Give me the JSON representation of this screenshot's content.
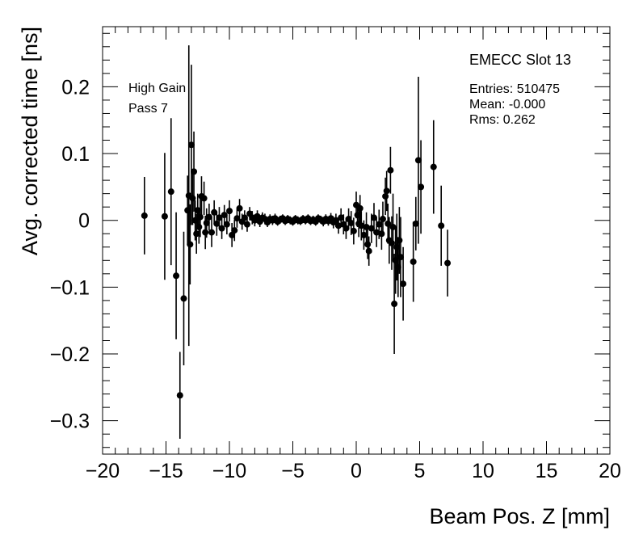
{
  "chart_data": {
    "type": "scatter",
    "title": "",
    "xlabel": "Beam Pos. Z [mm]",
    "ylabel": "Avg. corrected time [ns]",
    "xlim": [
      -20,
      20
    ],
    "ylim": [
      -0.35,
      0.29
    ],
    "x_ticks": [
      -20,
      -15,
      -10,
      -5,
      0,
      5,
      10,
      15,
      20
    ],
    "y_ticks": [
      -0.3,
      -0.2,
      -0.1,
      0,
      0.1,
      0.2
    ],
    "x_tick_labels": [
      "−20",
      "−15",
      "−10",
      "−5",
      "0",
      "5",
      "10",
      "15",
      "20"
    ],
    "y_tick_labels": [
      "−0.3",
      "−0.2",
      "−0.1",
      "0",
      "0.1",
      "0.2"
    ],
    "grid": false,
    "marker_color": "#000000",
    "annotations": {
      "left_line1": "High Gain",
      "left_line2": "Pass 7"
    },
    "stats_box": {
      "title": "EMECC Slot 13",
      "entries": "Entries: 510475",
      "mean": "Mean: -0.000",
      "rms": "Rms: 0.262"
    },
    "series": [
      {
        "points": [
          {
            "x": -16.7,
            "y": 0.007,
            "err": 0.058
          },
          {
            "x": -15.1,
            "y": 0.006,
            "err": 0.095
          },
          {
            "x": -14.6,
            "y": 0.043,
            "err": 0.11
          },
          {
            "x": -14.2,
            "y": -0.083,
            "err": 0.095
          },
          {
            "x": -13.9,
            "y": -0.262,
            "err": 0.065
          },
          {
            "x": -13.6,
            "y": -0.117,
            "err": 0.1
          },
          {
            "x": -13.3,
            "y": 0.015,
            "err": 0.052
          },
          {
            "x": -13.2,
            "y": 0.037,
            "err": 0.225
          },
          {
            "x": -13.1,
            "y": -0.036,
            "err": 0.06
          },
          {
            "x": -13.0,
            "y": 0.113,
            "err": 0.12
          },
          {
            "x": -12.9,
            "y": 0.033,
            "err": 0.04
          },
          {
            "x": -12.8,
            "y": 0.073,
            "err": 0.06
          },
          {
            "x": -12.7,
            "y": 0.0,
            "err": 0.03
          },
          {
            "x": -12.6,
            "y": -0.02,
            "err": 0.03
          },
          {
            "x": -12.5,
            "y": 0.015,
            "err": 0.025
          },
          {
            "x": -12.4,
            "y": -0.01,
            "err": 0.025
          },
          {
            "x": -12.3,
            "y": 0.005,
            "err": 0.03
          },
          {
            "x": -12.2,
            "y": 0.036,
            "err": 0.03
          },
          {
            "x": -12.0,
            "y": 0.033,
            "err": 0.025
          },
          {
            "x": -11.9,
            "y": -0.018,
            "err": 0.025
          },
          {
            "x": -11.8,
            "y": -0.004,
            "err": 0.022
          },
          {
            "x": -11.6,
            "y": 0.005,
            "err": 0.02
          },
          {
            "x": -11.4,
            "y": -0.018,
            "err": 0.022
          },
          {
            "x": -11.2,
            "y": 0.012,
            "err": 0.018
          },
          {
            "x": -11.0,
            "y": -0.005,
            "err": 0.018
          },
          {
            "x": -10.8,
            "y": 0.004,
            "err": 0.016
          },
          {
            "x": -10.6,
            "y": -0.012,
            "err": 0.016
          },
          {
            "x": -10.4,
            "y": 0.008,
            "err": 0.015
          },
          {
            "x": -10.2,
            "y": -0.006,
            "err": 0.015
          },
          {
            "x": -10.0,
            "y": 0.014,
            "err": 0.016
          },
          {
            "x": -9.8,
            "y": -0.022,
            "err": 0.018
          },
          {
            "x": -9.6,
            "y": -0.015,
            "err": 0.016
          },
          {
            "x": -9.4,
            "y": 0.003,
            "err": 0.014
          },
          {
            "x": -9.2,
            "y": 0.018,
            "err": 0.014
          },
          {
            "x": -9.0,
            "y": -0.002,
            "err": 0.012
          },
          {
            "x": -8.8,
            "y": 0.004,
            "err": 0.011
          },
          {
            "x": -8.6,
            "y": -0.006,
            "err": 0.011
          },
          {
            "x": -8.4,
            "y": 0.01,
            "err": 0.01
          },
          {
            "x": -8.2,
            "y": 0.004,
            "err": 0.01
          },
          {
            "x": -8.0,
            "y": 0.0,
            "err": 0.009
          },
          {
            "x": -7.8,
            "y": 0.006,
            "err": 0.009
          },
          {
            "x": -7.6,
            "y": -0.002,
            "err": 0.008
          },
          {
            "x": -7.4,
            "y": 0.004,
            "err": 0.008
          },
          {
            "x": -7.2,
            "y": 0.002,
            "err": 0.008
          },
          {
            "x": -7.0,
            "y": -0.003,
            "err": 0.007
          },
          {
            "x": -6.8,
            "y": 0.002,
            "err": 0.007
          },
          {
            "x": -6.6,
            "y": 0.0,
            "err": 0.007
          },
          {
            "x": -6.4,
            "y": 0.003,
            "err": 0.007
          },
          {
            "x": -6.2,
            "y": -0.002,
            "err": 0.006
          },
          {
            "x": -6.0,
            "y": 0.001,
            "err": 0.006
          },
          {
            "x": -5.8,
            "y": 0.003,
            "err": 0.006
          },
          {
            "x": -5.6,
            "y": -0.001,
            "err": 0.006
          },
          {
            "x": -5.4,
            "y": 0.002,
            "err": 0.006
          },
          {
            "x": -5.2,
            "y": 0.0,
            "err": 0.006
          },
          {
            "x": -5.0,
            "y": -0.002,
            "err": 0.006
          },
          {
            "x": -4.8,
            "y": 0.002,
            "err": 0.006
          },
          {
            "x": -4.6,
            "y": 0.0,
            "err": 0.006
          },
          {
            "x": -4.4,
            "y": -0.001,
            "err": 0.006
          },
          {
            "x": -4.2,
            "y": 0.002,
            "err": 0.006
          },
          {
            "x": -4.0,
            "y": 0.0,
            "err": 0.006
          },
          {
            "x": -3.8,
            "y": 0.003,
            "err": 0.006
          },
          {
            "x": -3.6,
            "y": -0.001,
            "err": 0.006
          },
          {
            "x": -3.4,
            "y": 0.001,
            "err": 0.006
          },
          {
            "x": -3.2,
            "y": -0.002,
            "err": 0.006
          },
          {
            "x": -3.0,
            "y": 0.003,
            "err": 0.006
          },
          {
            "x": -2.8,
            "y": 0.001,
            "err": 0.006
          },
          {
            "x": -2.6,
            "y": -0.002,
            "err": 0.007
          },
          {
            "x": -2.4,
            "y": 0.002,
            "err": 0.007
          },
          {
            "x": -2.2,
            "y": -0.001,
            "err": 0.007
          },
          {
            "x": -2.0,
            "y": 0.003,
            "err": 0.008
          },
          {
            "x": -1.8,
            "y": -0.003,
            "err": 0.009
          },
          {
            "x": -1.6,
            "y": 0.0,
            "err": 0.01
          },
          {
            "x": -1.4,
            "y": -0.008,
            "err": 0.012
          },
          {
            "x": -1.2,
            "y": 0.004,
            "err": 0.014
          },
          {
            "x": -1.0,
            "y": -0.006,
            "err": 0.015
          },
          {
            "x": -0.8,
            "y": -0.012,
            "err": 0.016
          },
          {
            "x": -0.6,
            "y": 0.002,
            "err": 0.016
          },
          {
            "x": -0.4,
            "y": -0.004,
            "err": 0.018
          },
          {
            "x": -0.2,
            "y": -0.016,
            "err": 0.02
          },
          {
            "x": 0.0,
            "y": 0.023,
            "err": 0.02
          },
          {
            "x": 0.1,
            "y": 0.008,
            "err": 0.018
          },
          {
            "x": 0.2,
            "y": -0.005,
            "err": 0.02
          },
          {
            "x": 0.3,
            "y": 0.018,
            "err": 0.02
          },
          {
            "x": 0.4,
            "y": -0.008,
            "err": 0.022
          },
          {
            "x": 0.6,
            "y": -0.022,
            "err": 0.022
          },
          {
            "x": 0.8,
            "y": -0.01,
            "err": 0.022
          },
          {
            "x": 0.9,
            "y": -0.036,
            "err": 0.022
          },
          {
            "x": 1.0,
            "y": -0.046,
            "err": 0.022
          },
          {
            "x": 1.2,
            "y": -0.012,
            "err": 0.022
          },
          {
            "x": 1.4,
            "y": 0.004,
            "err": 0.022
          },
          {
            "x": 1.6,
            "y": -0.018,
            "err": 0.022
          },
          {
            "x": 1.8,
            "y": -0.006,
            "err": 0.022
          },
          {
            "x": 2.0,
            "y": -0.02,
            "err": 0.024
          },
          {
            "x": 2.1,
            "y": 0.002,
            "err": 0.026
          },
          {
            "x": 2.3,
            "y": 0.036,
            "err": 0.028
          },
          {
            "x": 2.4,
            "y": 0.044,
            "err": 0.03
          },
          {
            "x": 2.5,
            "y": -0.005,
            "err": 0.03
          },
          {
            "x": 2.6,
            "y": -0.03,
            "err": 0.035
          },
          {
            "x": 2.7,
            "y": 0.075,
            "err": 0.035
          },
          {
            "x": 2.8,
            "y": -0.034,
            "err": 0.04
          },
          {
            "x": 2.9,
            "y": -0.01,
            "err": 0.05
          },
          {
            "x": 3.0,
            "y": -0.125,
            "err": 0.075
          },
          {
            "x": 3.1,
            "y": -0.06,
            "err": 0.05
          },
          {
            "x": 3.2,
            "y": -0.04,
            "err": 0.05
          },
          {
            "x": 3.3,
            "y": -0.07,
            "err": 0.045
          },
          {
            "x": 3.4,
            "y": -0.03,
            "err": 0.05
          },
          {
            "x": 3.5,
            "y": -0.055,
            "err": 0.06
          },
          {
            "x": 3.7,
            "y": -0.095,
            "err": 0.055
          },
          {
            "x": 4.5,
            "y": -0.062,
            "err": 0.06
          },
          {
            "x": 4.7,
            "y": -0.005,
            "err": 0.04
          },
          {
            "x": 4.9,
            "y": 0.09,
            "err": 0.125
          },
          {
            "x": 5.1,
            "y": 0.05,
            "err": 0.07
          },
          {
            "x": 6.1,
            "y": 0.08,
            "err": 0.07
          },
          {
            "x": 6.7,
            "y": -0.008,
            "err": 0.06
          },
          {
            "x": 7.2,
            "y": -0.064,
            "err": 0.05
          }
        ]
      }
    ]
  }
}
